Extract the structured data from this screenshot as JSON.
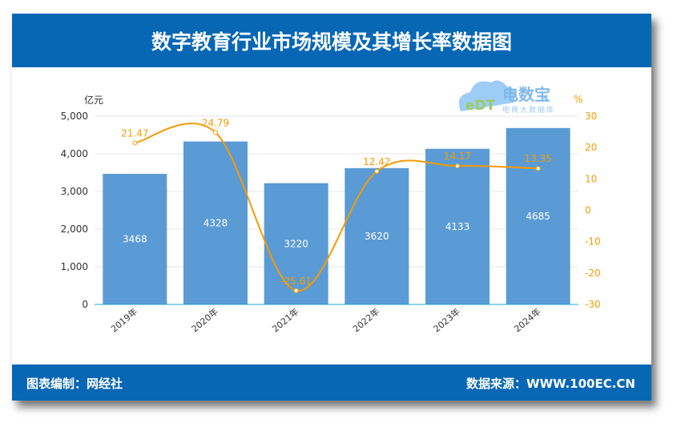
{
  "header": {
    "title": "数字教育行业市场规模及其增长率数据图"
  },
  "footer": {
    "left": "图表编制：网经社",
    "right": "数据来源：WWW.100EC.CN"
  },
  "logo": {
    "text": "电数宝",
    "sub": "电商大数据库",
    "mark": "eDT"
  },
  "chart_data": {
    "type": "bar+line",
    "categories": [
      "2019年",
      "2020年",
      "2021年",
      "2022年",
      "2023年",
      "2024年"
    ],
    "series": [
      {
        "name": "市场规模",
        "unit": "亿元",
        "axis": "left",
        "type": "bar",
        "color": "#5b9bd5",
        "values": [
          3468,
          4328,
          3220,
          3620,
          4133,
          4685
        ]
      },
      {
        "name": "增长率",
        "unit": "%",
        "axis": "right",
        "type": "line",
        "color": "#f59b00",
        "values": [
          21.47,
          24.79,
          -25.61,
          12.42,
          14.17,
          13.35
        ]
      }
    ],
    "ylabel_left": "亿元",
    "ylabel_right": "%",
    "ylim_left": [
      0,
      5000
    ],
    "yticks_left": [
      "0",
      "1,000",
      "2,000",
      "3,000",
      "4,000",
      "5,000"
    ],
    "ylim_right": [
      -30,
      30
    ],
    "yticks_right": [
      "-30",
      "-20",
      "-10",
      "0",
      "10",
      "20",
      "30"
    ],
    "grid": true
  }
}
